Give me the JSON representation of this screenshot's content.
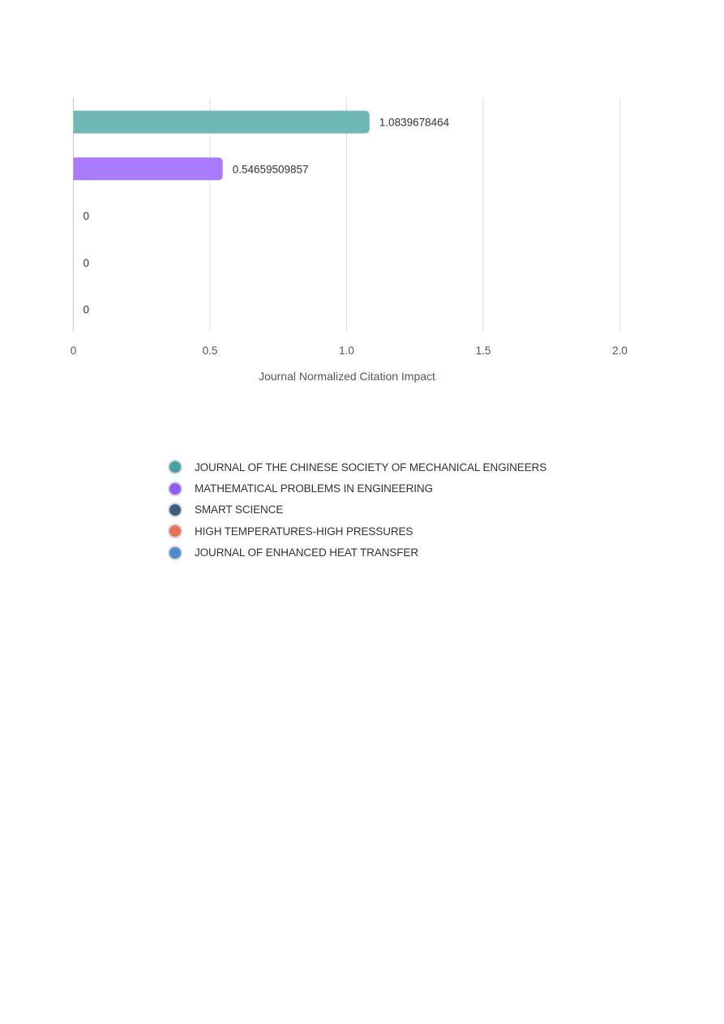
{
  "chart_data": {
    "type": "bar",
    "orientation": "horizontal",
    "categories": [
      "JOURNAL OF THE CHINESE SOCIETY OF MECHANICAL ENGINEERS",
      "MATHEMATICAL PROBLEMS IN ENGINEERING",
      "SMART SCIENCE",
      "HIGH TEMPERATURES-HIGH PRESSURES",
      "JOURNAL OF ENHANCED HEAT TRANSFER"
    ],
    "values": [
      1.0839678464,
      0.54659509857,
      0,
      0,
      0
    ],
    "value_labels": [
      "1.0839678464",
      "0.54659509857",
      "0",
      "0",
      "0"
    ],
    "colors": [
      "#6fb8b5",
      "#a77bfa",
      "#3d5a80",
      "#ea7057",
      "#4b8bd0"
    ],
    "xlabel": "Journal Normalized Citation Impact",
    "ylabel": "",
    "xlim": [
      0,
      2.0
    ],
    "xticks": [
      0,
      0.5,
      1.0,
      1.5,
      2.0
    ],
    "xtick_labels": [
      "0",
      "0.5",
      "1.0",
      "1.5",
      "2.0"
    ],
    "grid": "vertical",
    "legend_placement": "bottom-center"
  },
  "legend": {
    "items": [
      {
        "label": "JOURNAL OF THE CHINESE SOCIETY OF MECHANICAL ENGINEERS",
        "color": "#43a39f"
      },
      {
        "label": "MATHEMATICAL PROBLEMS IN ENGINEERING",
        "color": "#9159f5"
      },
      {
        "label": "SMART SCIENCE",
        "color": "#3d5a80"
      },
      {
        "label": "HIGH TEMPERATURES-HIGH PRESSURES",
        "color": "#ea7057"
      },
      {
        "label": "JOURNAL OF ENHANCED HEAT TRANSFER",
        "color": "#4b8bd0"
      }
    ]
  }
}
